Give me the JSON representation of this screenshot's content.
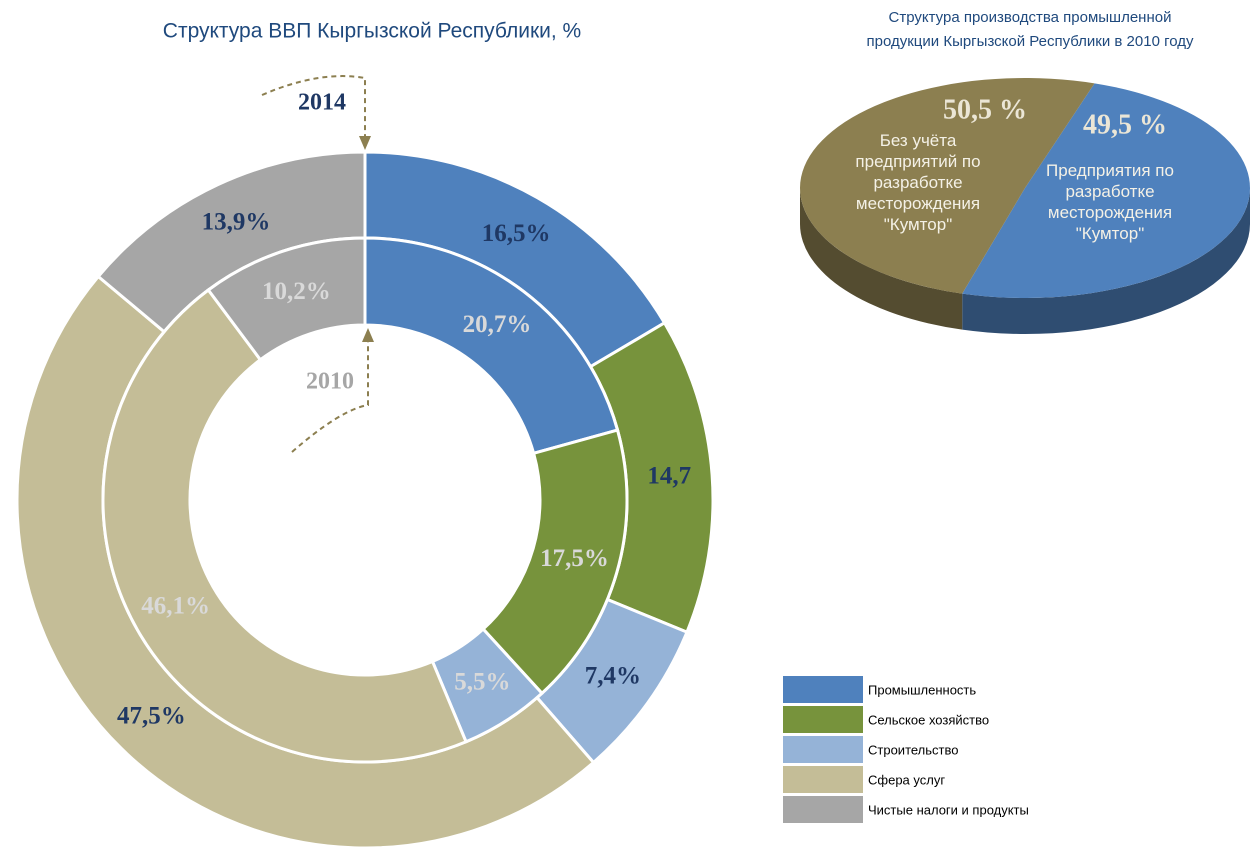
{
  "chart_data": [
    {
      "type": "donut",
      "title": "Структура ВВП Кыргызской Республики, %",
      "categories": [
        "Промышленность",
        "Сельское хозяйство",
        "Строительство",
        "Сфера услуг",
        "Чистые налоги и продукты"
      ],
      "colors": [
        "#4f81bd",
        "#77933c",
        "#95b3d7",
        "#c4bd97",
        "#a6a6a6"
      ],
      "series": [
        {
          "name": "2014",
          "values": [
            16.5,
            14.7,
            7.4,
            47.5,
            13.9
          ],
          "value_labels": [
            "16,5%",
            "14,7",
            "7,4%",
            "47,5%",
            "13,9%"
          ]
        },
        {
          "name": "2010",
          "values": [
            20.7,
            17.5,
            5.5,
            46.1,
            10.2
          ],
          "value_labels": [
            "20,7%",
            "17,5%",
            "5,5%",
            "46,1%",
            "10,2%"
          ]
        }
      ],
      "legend": "bottom-right"
    },
    {
      "type": "pie3d",
      "title": [
        "Структура производства промышленной",
        "продукции Кыргызской Республики в 2010 году"
      ],
      "categories": [
        "Без учёта предприятий по разработке месторождения \"Кумтор\"",
        "Предприятия по разработке месторождения \"Кумтор\""
      ],
      "values": [
        50.5,
        49.5
      ],
      "value_labels": [
        "50,5 %",
        "49,5 %"
      ],
      "colors": [
        "#8c7f50",
        "#4f81bd"
      ]
    }
  ]
}
